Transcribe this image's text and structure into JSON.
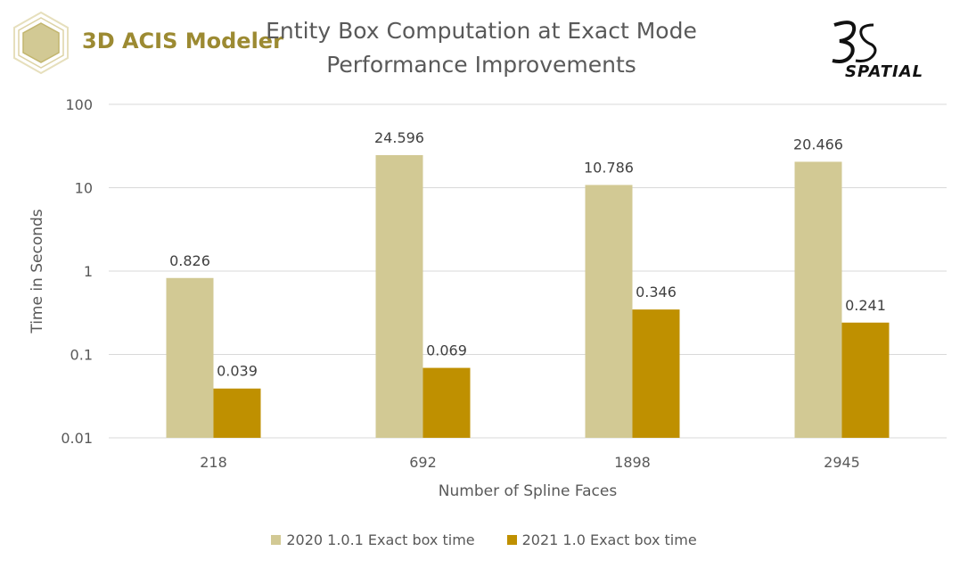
{
  "logo_left": {
    "text": "3D ACIS Modeler",
    "icon": "hexagon-logo-icon"
  },
  "logo_right": {
    "text": "SPATIAL",
    "icon": "3ds-logo-icon"
  },
  "chart_data": {
    "type": "bar",
    "title": [
      "Entity Box Computation at Exact Mode",
      "Performance Improvements"
    ],
    "xlabel": "Number of Spline Faces",
    "ylabel": "Time in Seconds",
    "yscale": "log",
    "ylim": [
      0.01,
      100
    ],
    "yticks": [
      "0.01",
      "0.1",
      "1",
      "10",
      "100"
    ],
    "grid": true,
    "legend_position": "bottom",
    "categories": [
      "218",
      "692",
      "1898",
      "2945"
    ],
    "series": [
      {
        "name": "2020 1.0.1 Exact box time",
        "color": "#d2c994",
        "values": [
          0.826,
          24.596,
          10.786,
          20.466
        ],
        "labels": [
          "0.826",
          "24.596",
          "10.786",
          "20.466"
        ]
      },
      {
        "name": "2021 1.0 Exact box time",
        "color": "#bf9000",
        "values": [
          0.039,
          0.069,
          0.346,
          0.241
        ],
        "labels": [
          "0.039",
          "0.069",
          "0.346",
          "0.241"
        ]
      }
    ]
  }
}
